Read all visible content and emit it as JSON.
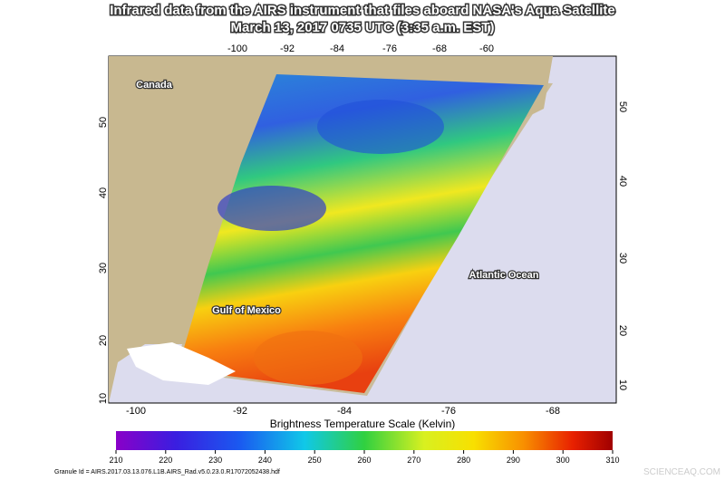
{
  "title": [
    "Infrared data from the AIRS instrument that files aboard NASA's Aqua Satellite",
    "March 13, 2017 0735 UTC (3:35 a.m. EST)"
  ],
  "map": {
    "top_lon_labels": [
      "-100",
      "-92",
      "-84",
      "-76",
      "-68",
      "-60"
    ],
    "bottom_lon_labels": [
      "-100",
      "-92",
      "-84",
      "-76",
      "-68"
    ],
    "left_lat_labels": [
      "50",
      "40",
      "30",
      "20",
      "10"
    ],
    "right_lat_labels": [
      "50",
      "40",
      "30",
      "20",
      "10"
    ],
    "places": [
      "Canada",
      "Atlantic Ocean",
      "Gulf of Mexico"
    ]
  },
  "colorbar": {
    "title": "Brightness Temperature Scale (Kelvin)",
    "range": [
      210,
      310
    ],
    "ticks": [
      210,
      220,
      230,
      240,
      250,
      260,
      270,
      280,
      290,
      300,
      310
    ]
  },
  "footer": {
    "granule": "Granule Id = AIRS.2017.03.13.076.L1B.AIRS_Rad.v5.0.23.0.R17072052438.hdf",
    "watermark": "SCIENCEAQ.COM"
  }
}
